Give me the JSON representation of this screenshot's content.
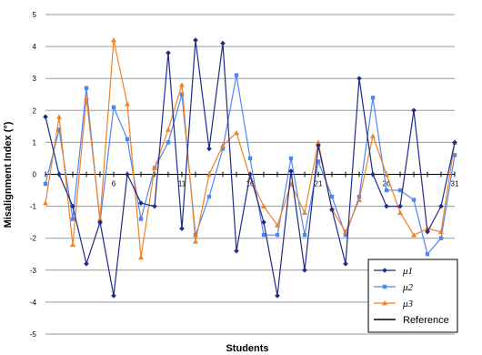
{
  "chart_data": {
    "type": "line",
    "xlabel": "Students",
    "ylabel": "Misalignment Index (°)",
    "xlim": [
      1,
      31
    ],
    "ylim": [
      -5,
      5
    ],
    "x_ticks": [
      6,
      11,
      16,
      21,
      26,
      31
    ],
    "y_ticks": [
      5,
      4,
      3,
      2,
      1,
      0,
      -1,
      -2,
      -3,
      -4,
      -5
    ],
    "grid": true,
    "legend_position": "bottom-right",
    "x": [
      1,
      2,
      3,
      4,
      5,
      6,
      7,
      8,
      9,
      10,
      11,
      12,
      13,
      14,
      15,
      16,
      17,
      18,
      19,
      20,
      21,
      22,
      23,
      24,
      25,
      26,
      27,
      28,
      29,
      30,
      31
    ],
    "series": [
      {
        "name": "μ1",
        "color": "#1f2a8a",
        "marker": "diamond",
        "values": [
          1.8,
          0,
          -1,
          -2.8,
          -1.5,
          -3.8,
          0,
          -0.9,
          -1,
          3.8,
          -1.7,
          4.2,
          0.8,
          4.1,
          -2.4,
          0,
          -1.5,
          -3.8,
          0.1,
          -3,
          0.9,
          -1.1,
          -2.8,
          3,
          0,
          -1,
          -1,
          2,
          -1.8,
          -1,
          1
        ]
      },
      {
        "name": "μ2",
        "color": "#4f87ee",
        "marker": "square",
        "values": [
          -0.3,
          1.4,
          -1.4,
          2.7,
          -1.5,
          2.1,
          1.1,
          -1.4,
          0.2,
          1,
          2.5,
          -1.9,
          -0.7,
          0.8,
          3.1,
          0.5,
          -1.9,
          -1.9,
          0.5,
          -1.9,
          0.4,
          -0.7,
          -1.9,
          -0.7,
          2.4,
          -0.5,
          -0.5,
          -0.8,
          -2.5,
          -2,
          0.6
        ]
      },
      {
        "name": "μ3",
        "color": "#f08228",
        "marker": "triangle",
        "values": [
          -0.9,
          1.8,
          -2.2,
          2.4,
          -1.4,
          4.2,
          2.2,
          -2.6,
          0.2,
          1.4,
          2.8,
          -2.1,
          0,
          0.9,
          1.3,
          -0.1,
          -1,
          -1.6,
          -0.3,
          -1.2,
          1,
          -1.1,
          -1.8,
          -0.8,
          1.2,
          0,
          -1.2,
          -1.9,
          -1.7,
          -1.8,
          1
        ]
      }
    ],
    "reference": {
      "name": "Reference",
      "value": 0,
      "color": "#000000"
    },
    "legend": {
      "entries": [
        "μ1",
        "μ2",
        "μ3",
        "Reference"
      ]
    }
  }
}
